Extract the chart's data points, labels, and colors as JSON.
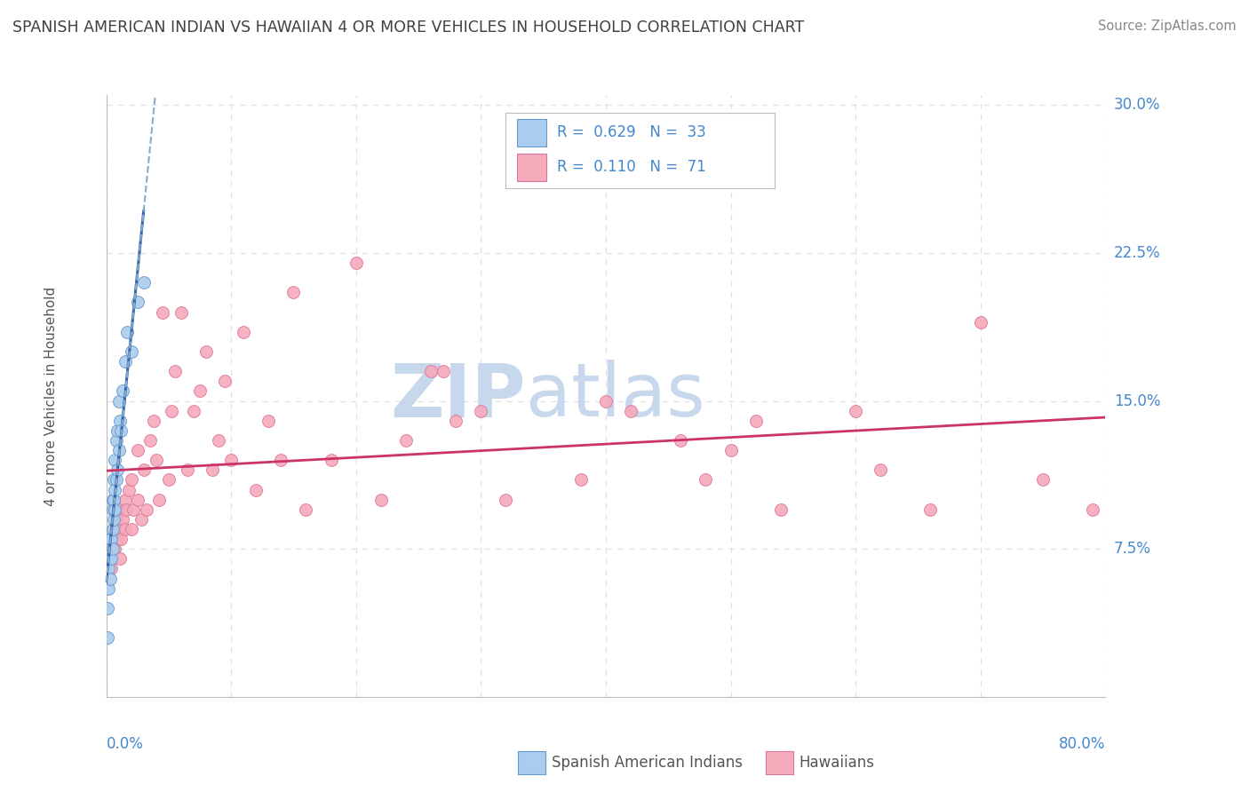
{
  "title": "SPANISH AMERICAN INDIAN VS HAWAIIAN 4 OR MORE VEHICLES IN HOUSEHOLD CORRELATION CHART",
  "source": "Source: ZipAtlas.com",
  "ylabel": "4 or more Vehicles in Household",
  "watermark": "ZIPatlas",
  "blue_r": "0.629",
  "blue_n": "33",
  "pink_r": "0.110",
  "pink_n": "71",
  "xlim": [
    0.0,
    0.8
  ],
  "ylim": [
    0.0,
    0.305
  ],
  "yticks": [
    0.075,
    0.15,
    0.225,
    0.3
  ],
  "ytick_labels": [
    "7.5%",
    "15.0%",
    "22.5%",
    "30.0%"
  ],
  "xtick_left": "0.0%",
  "xtick_right": "80.0%",
  "blue_x": [
    0.001,
    0.001,
    0.002,
    0.002,
    0.003,
    0.003,
    0.003,
    0.004,
    0.004,
    0.005,
    0.005,
    0.005,
    0.005,
    0.006,
    0.006,
    0.006,
    0.007,
    0.007,
    0.007,
    0.008,
    0.008,
    0.009,
    0.009,
    0.01,
    0.01,
    0.011,
    0.012,
    0.013,
    0.015,
    0.017,
    0.02,
    0.025,
    0.03
  ],
  "blue_y": [
    0.03,
    0.045,
    0.055,
    0.065,
    0.06,
    0.07,
    0.08,
    0.07,
    0.08,
    0.075,
    0.085,
    0.095,
    0.1,
    0.09,
    0.1,
    0.11,
    0.095,
    0.105,
    0.12,
    0.11,
    0.13,
    0.115,
    0.135,
    0.125,
    0.15,
    0.14,
    0.135,
    0.155,
    0.17,
    0.185,
    0.175,
    0.2,
    0.21
  ],
  "pink_x": [
    0.003,
    0.004,
    0.005,
    0.006,
    0.006,
    0.007,
    0.008,
    0.009,
    0.01,
    0.01,
    0.011,
    0.012,
    0.013,
    0.015,
    0.015,
    0.016,
    0.018,
    0.02,
    0.02,
    0.022,
    0.025,
    0.025,
    0.028,
    0.03,
    0.032,
    0.035,
    0.038,
    0.04,
    0.042,
    0.045,
    0.05,
    0.052,
    0.055,
    0.06,
    0.065,
    0.07,
    0.075,
    0.08,
    0.085,
    0.09,
    0.095,
    0.1,
    0.11,
    0.12,
    0.13,
    0.14,
    0.15,
    0.16,
    0.18,
    0.2,
    0.22,
    0.24,
    0.26,
    0.27,
    0.28,
    0.3,
    0.32,
    0.38,
    0.4,
    0.42,
    0.46,
    0.48,
    0.5,
    0.52,
    0.54,
    0.6,
    0.62,
    0.66,
    0.7,
    0.75,
    0.79
  ],
  "pink_y": [
    0.08,
    0.065,
    0.075,
    0.08,
    0.085,
    0.075,
    0.09,
    0.08,
    0.085,
    0.095,
    0.07,
    0.08,
    0.09,
    0.1,
    0.085,
    0.095,
    0.105,
    0.085,
    0.11,
    0.095,
    0.1,
    0.125,
    0.09,
    0.115,
    0.095,
    0.13,
    0.14,
    0.12,
    0.1,
    0.195,
    0.11,
    0.145,
    0.165,
    0.195,
    0.115,
    0.145,
    0.155,
    0.175,
    0.115,
    0.13,
    0.16,
    0.12,
    0.185,
    0.105,
    0.14,
    0.12,
    0.205,
    0.095,
    0.12,
    0.22,
    0.1,
    0.13,
    0.165,
    0.165,
    0.14,
    0.145,
    0.1,
    0.11,
    0.15,
    0.145,
    0.13,
    0.11,
    0.125,
    0.14,
    0.095,
    0.145,
    0.115,
    0.095,
    0.19,
    0.11,
    0.095
  ],
  "blue_scatter_color": "#aaccee",
  "blue_edge_color": "#6699cc",
  "pink_scatter_color": "#f5aabb",
  "pink_edge_color": "#dd7799",
  "blue_line_color": "#3366aa",
  "pink_line_color": "#cc3366",
  "blue_dash_color": "#88aacc",
  "grid_color": "#e0e0e0",
  "grid_dash": [
    4,
    4
  ],
  "bg_color": "#ffffff",
  "title_color": "#404040",
  "source_color": "#888888",
  "watermark_color": "#c8d8ec",
  "axis_tick_color": "#4488cc",
  "ylabel_color": "#555555"
}
